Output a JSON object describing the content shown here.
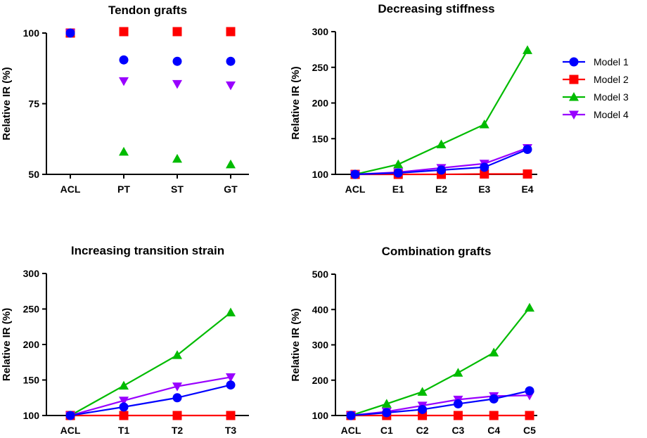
{
  "legend": {
    "entries": [
      {
        "name": "Model 1",
        "color": "#0000ff",
        "marker": "circle"
      },
      {
        "name": "Model 2",
        "color": "#ff0000",
        "marker": "square"
      },
      {
        "name": "Model 3",
        "color": "#00bb00",
        "marker": "triangle-up"
      },
      {
        "name": "Model 4",
        "color": "#9900ff",
        "marker": "triangle-down"
      }
    ]
  },
  "chart_data": [
    {
      "type": "scatter",
      "title": "Tendon grafts",
      "xlabel": "",
      "ylabel": "Relative IR (%)",
      "categories": [
        "ACL",
        "PT",
        "ST",
        "GT"
      ],
      "ylim": [
        50,
        100
      ],
      "yticks": [
        50,
        75,
        100
      ],
      "connect": false,
      "series": [
        {
          "name": "Model 1",
          "values": [
            100,
            90.5,
            90,
            90
          ]
        },
        {
          "name": "Model 2",
          "values": [
            100,
            100.5,
            100.5,
            100.5
          ]
        },
        {
          "name": "Model 3",
          "values": [
            100,
            58,
            55.5,
            53.5
          ]
        },
        {
          "name": "Model 4",
          "values": [
            100,
            83,
            82,
            81.5
          ]
        }
      ]
    },
    {
      "type": "line",
      "title": "Decreasing stiffness",
      "xlabel": "",
      "ylabel": "Relative IR (%)",
      "categories": [
        "ACL",
        "E1",
        "E2",
        "E3",
        "E4"
      ],
      "ylim": [
        100,
        300
      ],
      "yticks": [
        100,
        150,
        200,
        250,
        300
      ],
      "connect": true,
      "series": [
        {
          "name": "Model 1",
          "values": [
            100,
            102,
            106,
            110,
            135
          ]
        },
        {
          "name": "Model 2",
          "values": [
            100,
            100,
            100,
            100.5,
            100.5
          ]
        },
        {
          "name": "Model 3",
          "values": [
            100,
            114,
            142,
            170,
            274
          ]
        },
        {
          "name": "Model 4",
          "values": [
            100,
            103,
            109,
            115,
            137
          ]
        }
      ]
    },
    {
      "type": "line",
      "title": "Increasing transition strain",
      "xlabel": "",
      "ylabel": "Relative IR (%)",
      "categories": [
        "ACL",
        "T1",
        "T2",
        "T3"
      ],
      "ylim": [
        100,
        300
      ],
      "yticks": [
        100,
        150,
        200,
        250,
        300
      ],
      "connect": true,
      "series": [
        {
          "name": "Model 1",
          "values": [
            100,
            112,
            125,
            143
          ]
        },
        {
          "name": "Model 2",
          "values": [
            100,
            100,
            100,
            100
          ]
        },
        {
          "name": "Model 3",
          "values": [
            100,
            142,
            185,
            245
          ]
        },
        {
          "name": "Model 4",
          "values": [
            100,
            121,
            141,
            154
          ]
        }
      ]
    },
    {
      "type": "line",
      "title": "Combination grafts",
      "xlabel": "",
      "ylabel": "Relative IR (%)",
      "categories": [
        "ACL",
        "C1",
        "C2",
        "C3",
        "C4",
        "C5"
      ],
      "ylim": [
        100,
        500
      ],
      "yticks": [
        100,
        200,
        300,
        400,
        500
      ],
      "connect": true,
      "series": [
        {
          "name": "Model 1",
          "values": [
            100,
            108,
            117,
            133,
            147,
            170
          ]
        },
        {
          "name": "Model 2",
          "values": [
            100,
            100,
            100,
            100,
            100,
            100
          ]
        },
        {
          "name": "Model 3",
          "values": [
            100,
            133,
            167,
            221,
            278,
            405
          ]
        },
        {
          "name": "Model 4",
          "values": [
            100,
            111,
            128,
            145,
            155,
            157
          ]
        }
      ]
    }
  ]
}
